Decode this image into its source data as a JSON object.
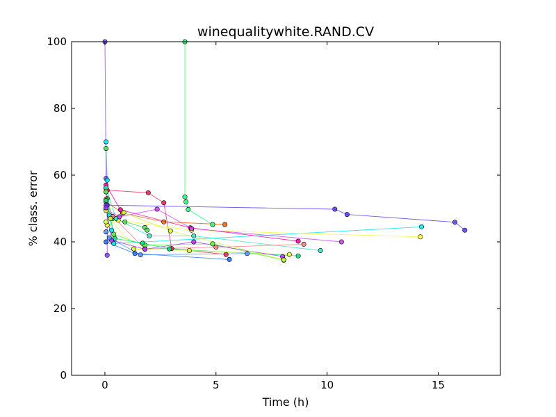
{
  "chart_data": {
    "type": "scatter",
    "title": "winequalitywhite.RAND.CV",
    "xlabel": "Time (h)",
    "ylabel": "% class. error",
    "xlim": [
      -1.5,
      17.8
    ],
    "ylim": [
      0,
      100
    ],
    "xticks": [
      0,
      5,
      10,
      15
    ],
    "yticks": [
      0,
      20,
      40,
      60,
      80,
      100
    ],
    "grid": false,
    "legend": "none",
    "series": [
      {
        "color": "#8b3dff",
        "x": [
          0.0,
          0.05,
          0.05,
          0.1,
          0.1
        ],
        "y": [
          100,
          59,
          55,
          51,
          36
        ]
      },
      {
        "color": "#00e6ff",
        "x": [
          0.05,
          0.1,
          0.2,
          0.3,
          0.4,
          14.25
        ],
        "y": [
          70,
          58.5,
          48,
          43.5,
          39.5,
          44.5
        ]
      },
      {
        "color": "#4ade4a",
        "x": [
          0.05,
          0.1,
          0.35,
          0.9,
          1.8,
          1.9
        ],
        "y": [
          68,
          53,
          47,
          46,
          44.3,
          43.5
        ]
      },
      {
        "color": "#22ff7a",
        "x": [
          3.6,
          3.6,
          3.65,
          3.75,
          4.85
        ],
        "y": [
          100,
          53.5,
          52,
          49.7,
          45.2
        ]
      },
      {
        "color": "#ff2050",
        "x": [
          0.05,
          0.1,
          1.95,
          2.65,
          3.0,
          5.45
        ],
        "y": [
          56,
          55.5,
          54.7,
          51.7,
          38,
          36.2
        ]
      },
      {
        "color": "#ff5f00",
        "x": [
          0.05,
          0.8,
          2.65,
          5.4
        ],
        "y": [
          52,
          48.6,
          46,
          45.2
        ]
      },
      {
        "color": "#ff00aa",
        "x": [
          0.05,
          0.7,
          3.85,
          8.7
        ],
        "y": [
          57,
          49.6,
          44.2,
          40.2
        ]
      },
      {
        "color": "#5a3bff",
        "x": [
          0.05,
          10.35,
          10.9,
          15.75,
          16.2
        ],
        "y": [
          51,
          49.8,
          48.2,
          45.9,
          43.5
        ]
      },
      {
        "color": "#ffff30",
        "x": [
          0.1,
          0.6,
          3.9,
          14.2
        ],
        "y": [
          45,
          46.5,
          43.5,
          41.5
        ]
      },
      {
        "color": "#2fe4c9",
        "x": [
          0.05,
          0.5,
          2.0,
          4.0,
          9.7
        ],
        "y": [
          56.2,
          47,
          41.8,
          41.8,
          37.4
        ]
      },
      {
        "color": "#d040ff",
        "x": [
          0.05,
          0.65,
          2.35,
          3.9,
          10.65
        ],
        "y": [
          49.8,
          47.5,
          49.8,
          44,
          40
        ]
      },
      {
        "color": "#2070ff",
        "x": [
          0.05,
          1.35,
          5.6
        ],
        "y": [
          40,
          36.5,
          34.7
        ]
      },
      {
        "color": "#5dff39",
        "x": [
          0.05,
          0.4,
          1.8,
          4.85,
          8.05
        ],
        "y": [
          55,
          42.3,
          39,
          39.4,
          34.5
        ]
      },
      {
        "color": "#ff7a7a",
        "x": [
          0.05,
          0.35,
          1.8,
          5.0,
          8.95
        ],
        "y": [
          52.7,
          47.6,
          37.9,
          38.4,
          39.3
        ]
      },
      {
        "color": "#00e07a",
        "x": [
          0.05,
          0.45,
          1.7,
          2.9,
          8.7
        ],
        "y": [
          52.4,
          41,
          39.6,
          37.9,
          35.8
        ]
      },
      {
        "color": "#d9ff36",
        "x": [
          0.05,
          0.25,
          1.3,
          3.8,
          8.3
        ],
        "y": [
          49.4,
          47,
          37.9,
          37.4,
          36.2
        ]
      },
      {
        "color": "#b030ff",
        "x": [
          0.05,
          0.3,
          1.8,
          4.0,
          8.0
        ],
        "y": [
          50.2,
          40.5,
          37.8,
          40,
          35.6
        ]
      },
      {
        "color": "#4a90ff",
        "x": [
          0.05,
          0.2,
          1.6,
          6.4
        ],
        "y": [
          43,
          41.2,
          36.1,
          36.5
        ]
      },
      {
        "color": "#c8ff30",
        "x": [
          0.05,
          0.85,
          2.95,
          8.05
        ],
        "y": [
          46,
          48.8,
          43.3,
          34.6
        ]
      }
    ]
  }
}
